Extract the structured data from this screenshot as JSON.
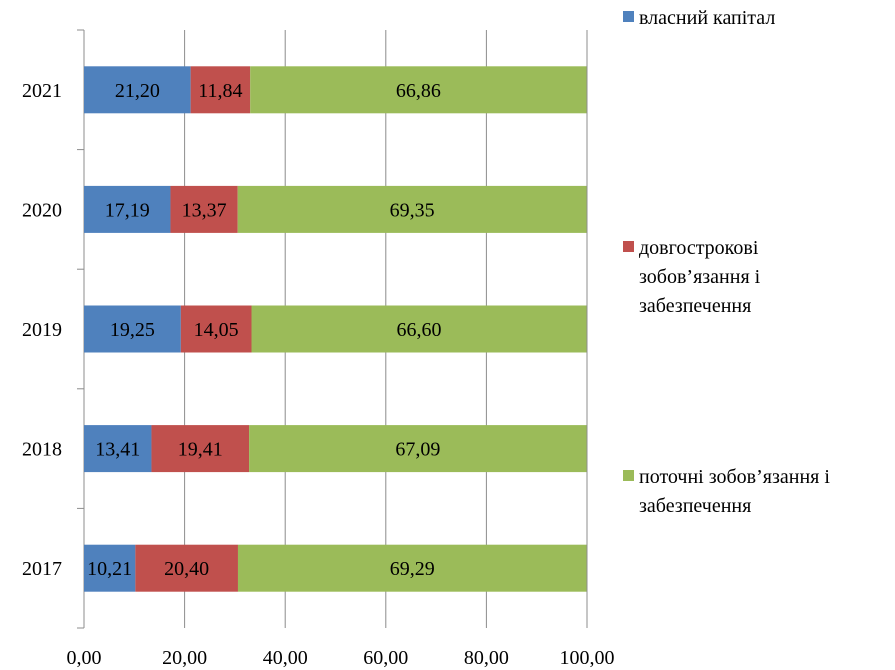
{
  "chart_data": {
    "type": "bar",
    "orientation": "horizontal",
    "stacked": true,
    "categories": [
      "2017",
      "2018",
      "2019",
      "2020",
      "2021"
    ],
    "series": [
      {
        "name": "власний капітал",
        "color": "#4f81bd",
        "values": [
          10.21,
          13.41,
          19.25,
          17.19,
          21.2
        ],
        "labels": [
          "10,21",
          "13,41",
          "19,25",
          "17,19",
          "21,20"
        ]
      },
      {
        "name": "довгострокові зобов’язання і забезпечення",
        "color": "#c0504d",
        "values": [
          20.4,
          19.41,
          14.05,
          13.37,
          11.84
        ],
        "labels": [
          "20,40",
          "19,41",
          "14,05",
          "13,37",
          "11,84"
        ]
      },
      {
        "name": "поточні зобов’язання і забезпечення",
        "color": "#9bbb59",
        "values": [
          69.29,
          67.09,
          66.6,
          69.35,
          66.86
        ],
        "labels": [
          "69,29",
          "67,09",
          "66,60",
          "69,35",
          "66,86"
        ]
      }
    ],
    "xlim": [
      0,
      100
    ],
    "x_ticks": [
      "0,00",
      "20,00",
      "40,00",
      "60,00",
      "80,00",
      "100,00"
    ],
    "grid": "vertical",
    "legend_position": "right",
    "legend_lines": [
      [
        "власний капітал"
      ],
      [
        "довгострокові",
        "зобов’язання і",
        "забезпечення"
      ],
      [
        "поточні зобов’язання і",
        "забезпечення"
      ]
    ]
  }
}
